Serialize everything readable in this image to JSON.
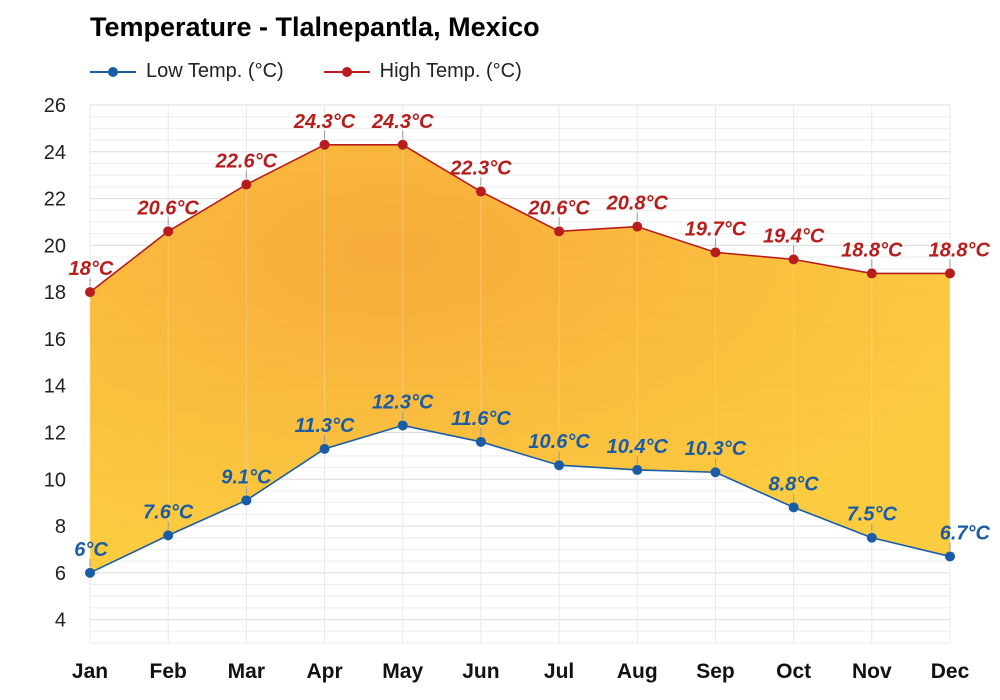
{
  "chart_data": {
    "type": "line",
    "title": "Temperature - Tlalnepantla, Mexico",
    "categories": [
      "Jan",
      "Feb",
      "Mar",
      "Apr",
      "May",
      "Jun",
      "Jul",
      "Aug",
      "Sep",
      "Oct",
      "Nov",
      "Dec"
    ],
    "series": [
      {
        "name": "Low Temp. (°C)",
        "color": "#1a5da6",
        "values": [
          6,
          7.6,
          9.1,
          11.3,
          12.3,
          11.6,
          10.6,
          10.4,
          10.3,
          8.8,
          7.5,
          6.7
        ],
        "labels": [
          "6°C",
          "7.6°C",
          "9.1°C",
          "11.3°C",
          "12.3°C",
          "11.6°C",
          "10.6°C",
          "10.4°C",
          "10.3°C",
          "8.8°C",
          "7.5°C",
          "6.7°C"
        ]
      },
      {
        "name": "High Temp. (°C)",
        "color": "#b81d1d",
        "values": [
          18,
          20.6,
          22.6,
          24.3,
          24.3,
          22.3,
          20.6,
          20.8,
          19.7,
          19.4,
          18.8,
          18.8
        ],
        "labels": [
          "18°C",
          "20.6°C",
          "22.6°C",
          "24.3°C",
          "24.3°C",
          "22.3°C",
          "20.6°C",
          "20.8°C",
          "19.7°C",
          "19.4°C",
          "18.8°C",
          "18.8°C"
        ]
      }
    ],
    "yticks": [
      "4",
      "6",
      "8",
      "10",
      "12",
      "14",
      "16",
      "18",
      "20",
      "22",
      "24",
      "26"
    ],
    "ylim": [
      3,
      26
    ],
    "grid": true,
    "legend": "top-left",
    "fill_between": true,
    "fill_colors": [
      "#fbc02d",
      "#f9a826"
    ]
  }
}
